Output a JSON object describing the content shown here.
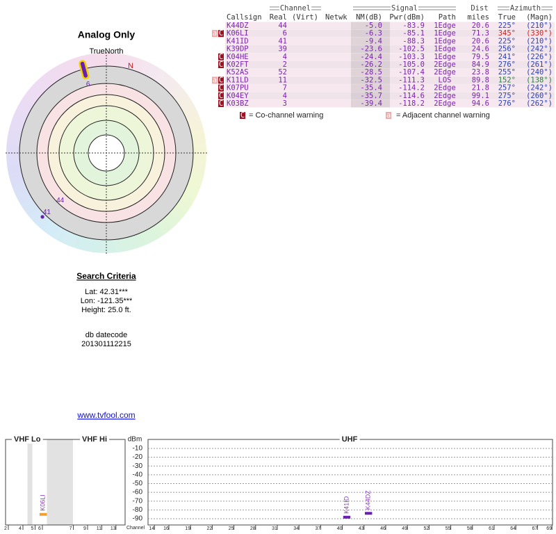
{
  "radar": {
    "title": "Analog Only",
    "north_label": "TrueNorth",
    "n_label": "N",
    "points": [
      {
        "label": "6",
        "bearing": 345,
        "color": "#6a1fb0",
        "outline": "#f2d200"
      },
      {
        "label": "44",
        "bearing": 225,
        "color": "#6a1fb0"
      },
      {
        "label": "41",
        "bearing": 225,
        "color": "#6a1fb0"
      }
    ]
  },
  "table": {
    "group_headers": [
      "Channel",
      "Signal",
      "Dist",
      "Azimuth"
    ],
    "columns": [
      "Callsign",
      "Real",
      "(Virt)",
      "Netwk",
      "NM(dB)",
      "Pwr(dBm)",
      "Path",
      "miles",
      "True",
      "(Magn)"
    ],
    "rows": [
      {
        "cells": [
          "K44DZ",
          "44",
          "-5.0",
          "-83.9",
          "1Edge",
          "20.6",
          "225°",
          "(210°)"
        ],
        "azimuth_color": "#2a40b0"
      },
      {
        "cells": [
          "K06LI",
          "6",
          "-6.3",
          "-85.1",
          "1Edge",
          "71.3",
          "345°",
          "(330°)"
        ],
        "azimuth_color": "#d02020",
        "warnings": [
          {
            "icon": "a",
            "color": "#f0a8a8"
          },
          {
            "icon": "C",
            "color": "#a01020"
          }
        ]
      },
      {
        "cells": [
          "K41ID",
          "41",
          "-9.4",
          "-88.3",
          "1Edge",
          "20.6",
          "225°",
          "(210°)"
        ],
        "azimuth_color": "#2a40b0"
      },
      {
        "cells": [
          "K39DP",
          "39",
          "-23.6",
          "-102.5",
          "1Edge",
          "24.6",
          "256°",
          "(242°)"
        ],
        "azimuth_color": "#2a40b0"
      },
      {
        "cells": [
          "K04HE",
          "4",
          "-24.4",
          "-103.3",
          "1Edge",
          "79.5",
          "241°",
          "(226°)"
        ],
        "azimuth_color": "#2a40b0",
        "warnings": [
          {
            "icon": "C",
            "color": "#a01020"
          }
        ]
      },
      {
        "cells": [
          "K02FT",
          "2",
          "-26.2",
          "-105.0",
          "2Edge",
          "84.9",
          "276°",
          "(261°)"
        ],
        "azimuth_color": "#2a40b0",
        "warnings": [
          {
            "icon": "C",
            "color": "#a01020"
          }
        ]
      },
      {
        "cells": [
          "K52AS",
          "52",
          "-28.5",
          "-107.4",
          "2Edge",
          "23.8",
          "255°",
          "(240°)"
        ],
        "azimuth_color": "#2a40b0"
      },
      {
        "cells": [
          "K11LD",
          "11",
          "-32.5",
          "-111.3",
          "LOS",
          "89.8",
          "152°",
          "(138°)"
        ],
        "azimuth_color": "#208040",
        "warnings": [
          {
            "icon": "a",
            "color": "#f0a8a8"
          },
          {
            "icon": "C",
            "color": "#a01020"
          }
        ]
      },
      {
        "cells": [
          "K07PU",
          "7",
          "-35.4",
          "-114.2",
          "2Edge",
          "21.8",
          "257°",
          "(242°)"
        ],
        "azimuth_color": "#2a40b0",
        "warnings": [
          {
            "icon": "C",
            "color": "#a01020"
          }
        ]
      },
      {
        "cells": [
          "K04EY",
          "4",
          "-35.7",
          "-114.6",
          "2Edge",
          "99.1",
          "275°",
          "(260°)"
        ],
        "azimuth_color": "#2a40b0",
        "warnings": [
          {
            "icon": "C",
            "color": "#a01020"
          }
        ]
      },
      {
        "cells": [
          "K03BZ",
          "3",
          "-39.4",
          "-118.2",
          "2Edge",
          "94.6",
          "276°",
          "(262°)"
        ],
        "azimuth_color": "#2a40b0",
        "warnings": [
          {
            "icon": "C",
            "color": "#a01020"
          }
        ]
      }
    ]
  },
  "legend": [
    {
      "icon": "C",
      "color": "#a01020",
      "text": "= Co-channel warning"
    },
    {
      "icon": "a",
      "color": "#f0a8a8",
      "text": "= Adjacent channel warning"
    }
  ],
  "search": {
    "title": "Search Criteria",
    "lines": [
      "Lat: 42.31***",
      "Lon: -121.35***",
      "Height: 25.0 ft."
    ],
    "datecode_label": "db datecode",
    "datecode": "201301112215"
  },
  "link": "www.tvfool.com",
  "spectrum": {
    "band_labels": [
      "VHF Lo",
      "VHF Hi",
      "UHF"
    ],
    "y_label": "dBm",
    "x_label": "Channel",
    "ylim": [
      -97,
      -4
    ],
    "yticks": [
      -10,
      -20,
      -30,
      -40,
      -50,
      -60,
      -70,
      -80,
      -90
    ],
    "vhf_lo_ticks": [
      2,
      4,
      5,
      6
    ],
    "vhf_hi_ticks": [
      7,
      9,
      11,
      13
    ],
    "uhf_ticks": [
      14,
      16,
      19,
      22,
      25,
      28,
      31,
      34,
      37,
      40,
      43,
      46,
      49,
      52,
      55,
      58,
      61,
      64,
      67,
      69
    ],
    "stations": [
      {
        "label": "K06LI",
        "channel": 6,
        "value": -85.1,
        "color": "#f0a030"
      },
      {
        "label": "K41ID",
        "channel": 41,
        "value": -88.3,
        "color": "#6a1fb0"
      },
      {
        "label": "K44DZ",
        "channel": 44,
        "value": -83.9,
        "color": "#6a1fb0"
      }
    ]
  }
}
